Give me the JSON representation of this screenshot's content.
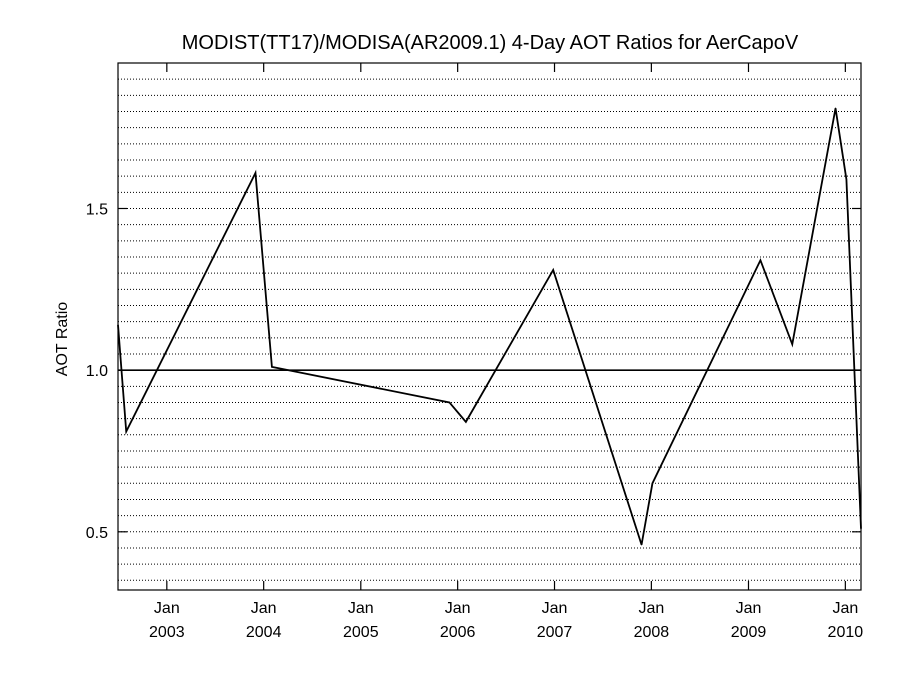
{
  "chart_data": {
    "type": "line",
    "title": "MODIST(TT17)/MODISA(AR2009.1) 4-Day AOT Ratios for AerCapoV",
    "xlabel": "",
    "ylabel": "AOT Ratio",
    "xlim": [
      "2002-07-01",
      "2010-03-01"
    ],
    "ylim": [
      0.32,
      1.95
    ],
    "y_ticks": [
      {
        "value": 0.5,
        "label": "0.5"
      },
      {
        "value": 1.0,
        "label": "1.0"
      },
      {
        "value": 1.5,
        "label": "1.5"
      }
    ],
    "x_ticks": [
      {
        "date": "2003-01-01",
        "month": "Jan",
        "year": "2003"
      },
      {
        "date": "2004-01-01",
        "month": "Jan",
        "year": "2004"
      },
      {
        "date": "2005-01-01",
        "month": "Jan",
        "year": "2005"
      },
      {
        "date": "2006-01-01",
        "month": "Jan",
        "year": "2006"
      },
      {
        "date": "2007-01-01",
        "month": "Jan",
        "year": "2007"
      },
      {
        "date": "2008-01-01",
        "month": "Jan",
        "year": "2008"
      },
      {
        "date": "2009-01-01",
        "month": "Jan",
        "year": "2009"
      },
      {
        "date": "2010-01-01",
        "month": "Jan",
        "year": "2010"
      }
    ],
    "reference_line": 1.0,
    "horizontal_grid": {
      "style": "dotted",
      "step": 0.05
    },
    "series": [
      {
        "color": "#000000",
        "points": [
          {
            "x": "2002-07-01",
            "y": 1.14
          },
          {
            "x": "2002-08-01",
            "y": 0.81
          },
          {
            "x": "2003-12-01",
            "y": 1.61
          },
          {
            "x": "2004-02-01",
            "y": 1.01
          },
          {
            "x": "2005-12-01",
            "y": 0.9
          },
          {
            "x": "2006-02-01",
            "y": 0.84
          },
          {
            "x": "2006-12-27",
            "y": 1.31
          },
          {
            "x": "2007-11-25",
            "y": 0.46
          },
          {
            "x": "2008-01-05",
            "y": 0.65
          },
          {
            "x": "2009-02-15",
            "y": 1.34
          },
          {
            "x": "2009-06-15",
            "y": 1.08
          },
          {
            "x": "2009-11-25",
            "y": 1.81
          },
          {
            "x": "2010-01-05",
            "y": 1.59
          },
          {
            "x": "2010-03-01",
            "y": 0.51
          }
        ]
      }
    ]
  }
}
